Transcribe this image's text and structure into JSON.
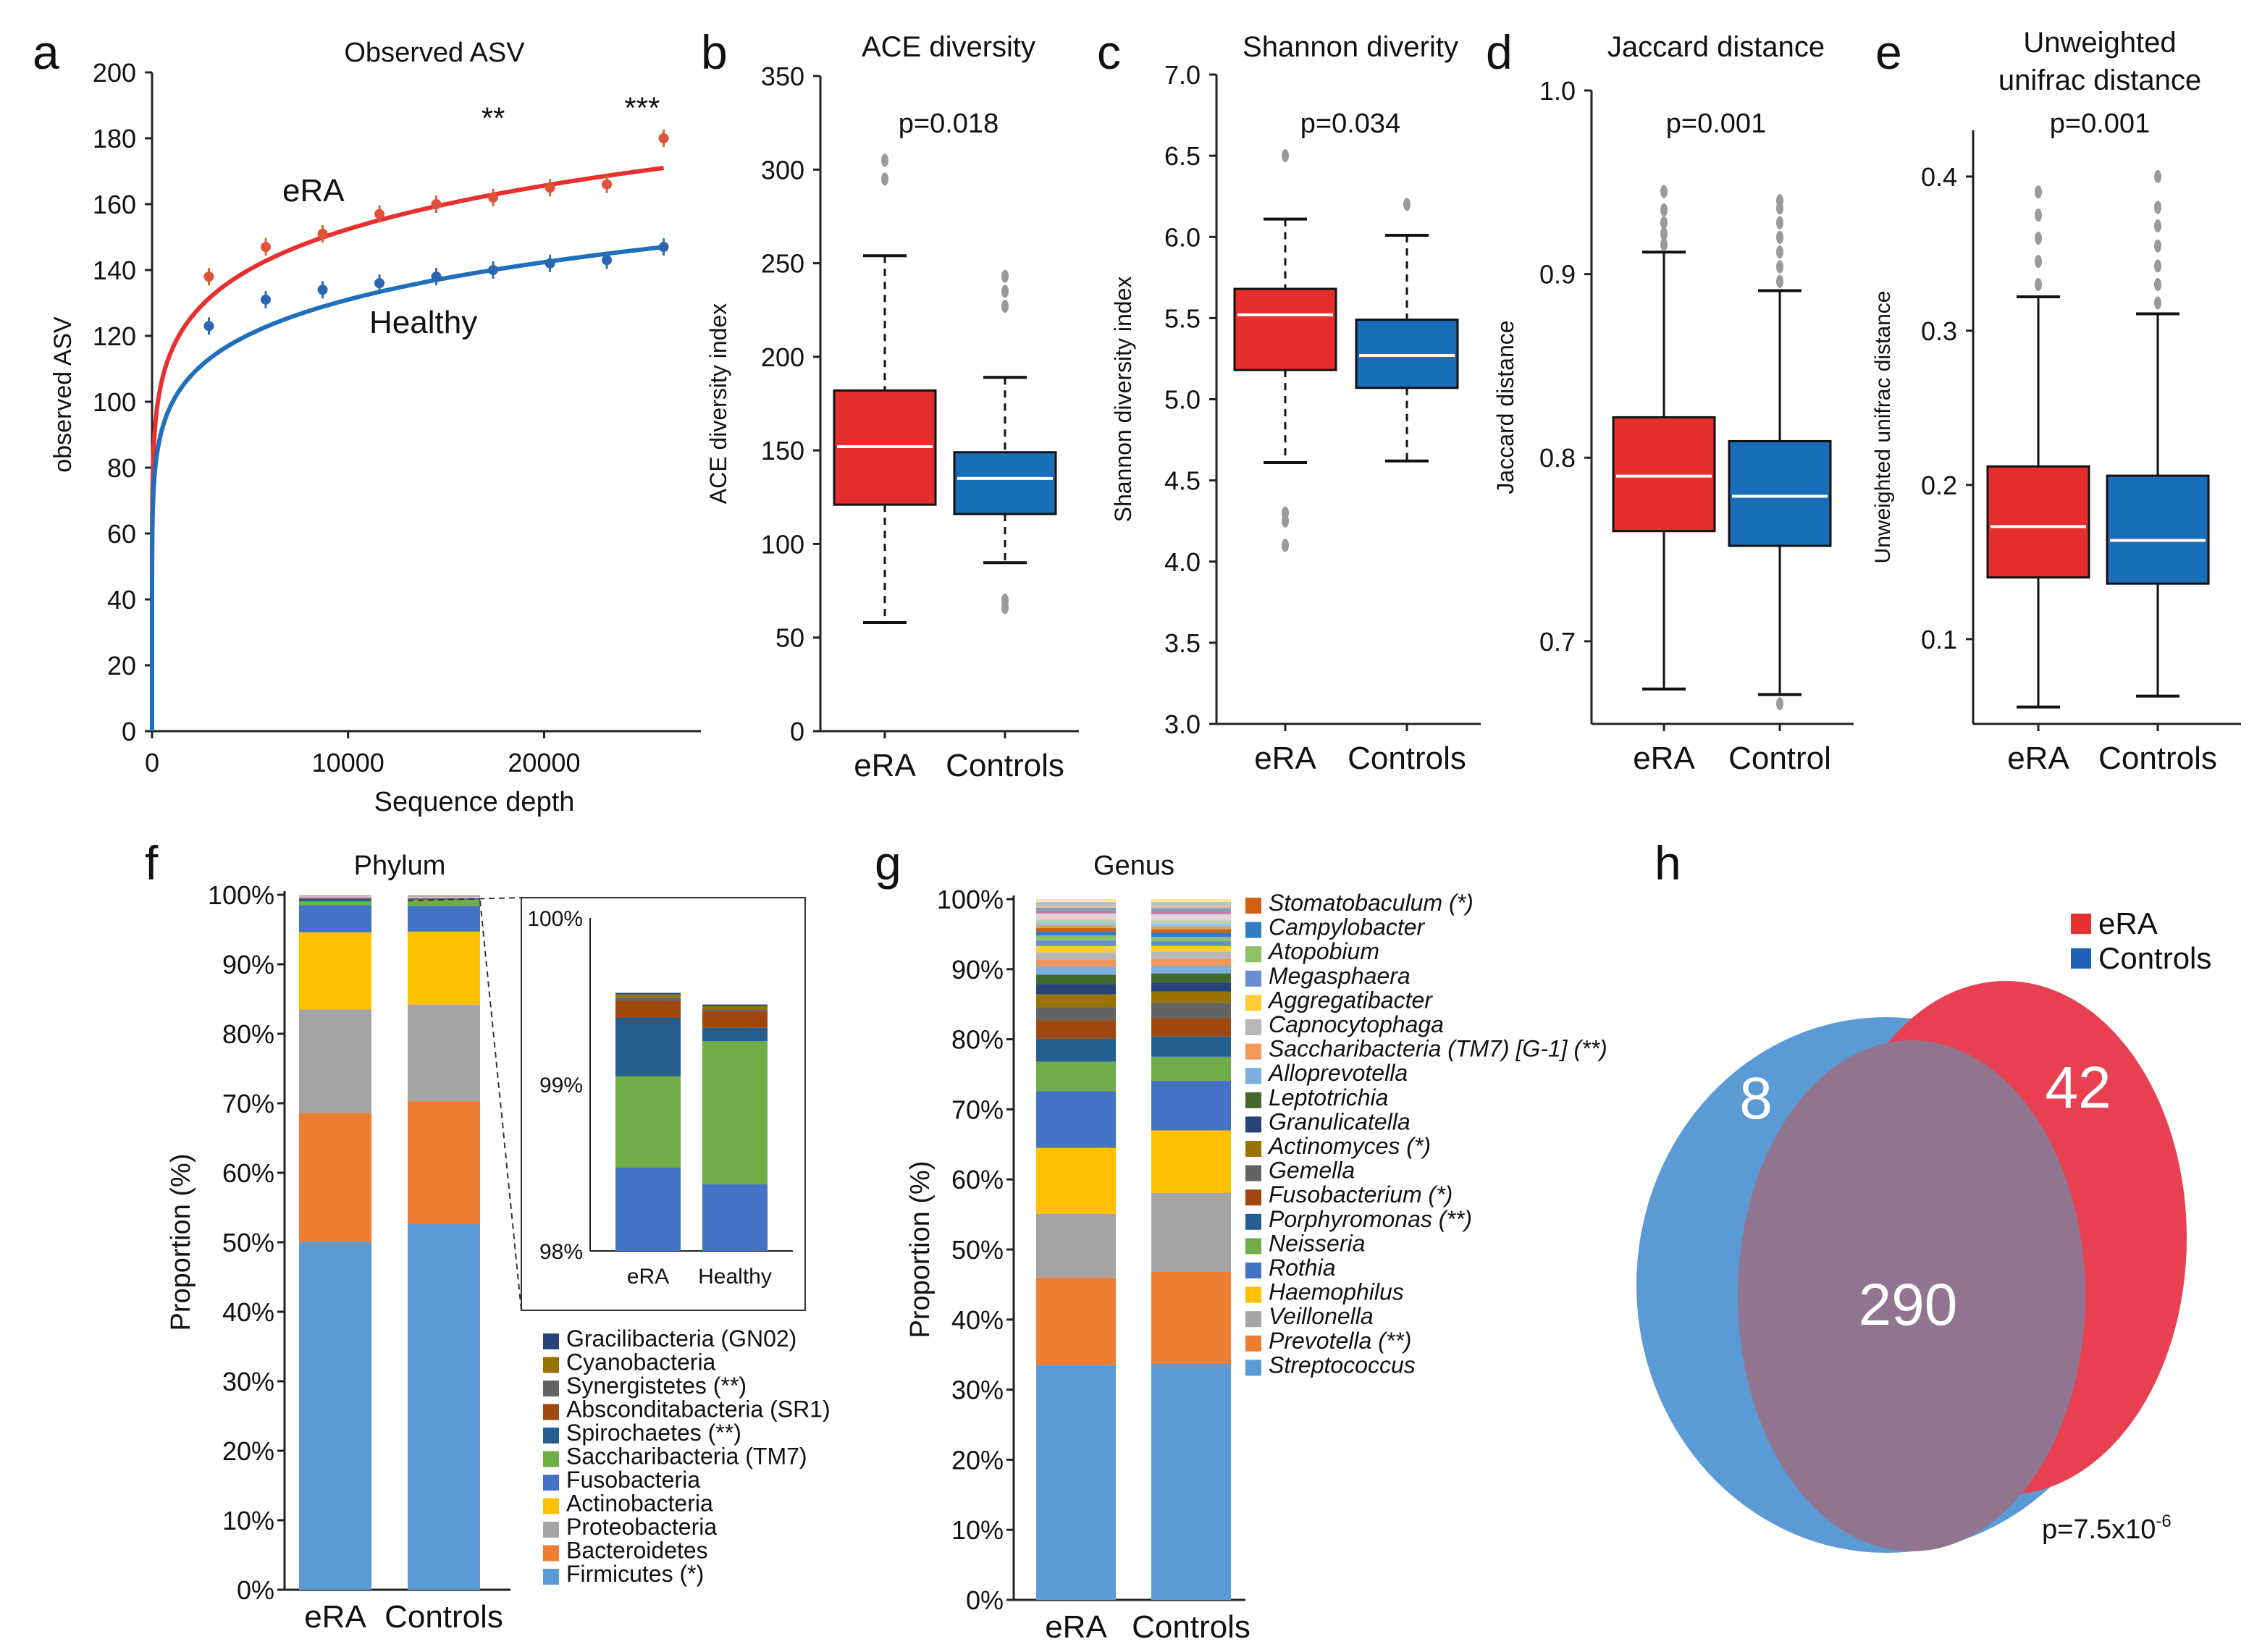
{
  "colors": {
    "era": "#e8302f",
    "healthy": "#1f6fbb",
    "box_era": "#e62e2d",
    "box_ctrl": "#1a6db8",
    "venn_blue": "#5b9bd5",
    "venn_red": "#e84050",
    "venn_overlap": "#917590"
  },
  "chart_data": [
    {
      "panel": "a",
      "type": "line",
      "title": "Observed ASV",
      "xlabel": "Sequence depth",
      "ylabel": "observed ASV",
      "xlim": [
        0,
        28000
      ],
      "ylim": [
        0,
        200
      ],
      "x_ticks": [
        "0",
        "10000",
        "20000"
      ],
      "x_tick_values": [
        0,
        10000,
        20000
      ],
      "y_ticks": [
        "0",
        "20",
        "40",
        "60",
        "80",
        "100",
        "120",
        "140",
        "160",
        "180",
        "200"
      ],
      "series": [
        {
          "name": "eRA",
          "fit_end": 171,
          "x": [
            2900,
            5800,
            8700,
            11600,
            14500,
            17400,
            20300,
            23200,
            26100
          ],
          "values": [
            138,
            147,
            151,
            157,
            160,
            162,
            165,
            166,
            180
          ]
        },
        {
          "name": "Healthy",
          "fit_end": 147,
          "x": [
            2900,
            5800,
            8700,
            11600,
            14500,
            17400,
            20300,
            23200,
            26100
          ],
          "values": [
            123,
            131,
            134,
            136,
            138,
            140,
            142,
            143,
            147
          ]
        }
      ],
      "annotations": [
        {
          "text": "**",
          "x": 17400,
          "y": 183
        },
        {
          "text": "***",
          "x": 25000,
          "y": 186
        }
      ],
      "label_era": "eRA",
      "label_healthy": "Healthy"
    },
    {
      "panel": "b",
      "type": "box",
      "title": "ACE diversity",
      "ylabel": "ACE diversity index",
      "pvalue": "p=0.018",
      "ylim": [
        0,
        350
      ],
      "y_ticks": [
        "0",
        "50",
        "100",
        "150",
        "200",
        "250",
        "300",
        "350"
      ],
      "categories": [
        "eRA",
        "Controls"
      ],
      "boxes": [
        {
          "q1": 121,
          "median": 152,
          "q3": 182,
          "whisker_low": 58,
          "whisker_high": 254,
          "outliers": [
            295,
            305
          ]
        },
        {
          "q1": 116,
          "median": 135,
          "q3": 149,
          "whisker_low": 90,
          "whisker_high": 189,
          "outliers": [
            66,
            70,
            227,
            235,
            243
          ]
        }
      ]
    },
    {
      "panel": "c",
      "type": "box",
      "title": "Shannon diverity",
      "ylabel": "Shannon diversity index",
      "pvalue": "p=0.034",
      "ylim": [
        3.0,
        7.0
      ],
      "y_ticks": [
        "3.0",
        "3.5",
        "4.0",
        "4.5",
        "5.0",
        "5.5",
        "6.0",
        "6.5",
        "7.0"
      ],
      "categories": [
        "eRA",
        "Controls"
      ],
      "boxes": [
        {
          "q1": 5.18,
          "median": 5.52,
          "q3": 5.68,
          "whisker_low": 4.61,
          "whisker_high": 6.11,
          "outliers": [
            4.1,
            4.25,
            4.3,
            6.5
          ]
        },
        {
          "q1": 5.07,
          "median": 5.27,
          "q3": 5.49,
          "whisker_low": 4.62,
          "whisker_high": 6.01,
          "outliers": [
            6.2
          ]
        }
      ]
    },
    {
      "panel": "d",
      "type": "box",
      "title": "Jaccard distance",
      "ylabel": "Jaccard distance",
      "pvalue": "p=0.001",
      "ylim": [
        0.655,
        1.0
      ],
      "y_ticks": [
        "0.7",
        "0.8",
        "0.9",
        "1.0"
      ],
      "y_tick_values": [
        0.7,
        0.8,
        0.9,
        1.0
      ],
      "categories": [
        "eRA",
        "Control"
      ],
      "boxes": [
        {
          "q1": 0.76,
          "median": 0.79,
          "q3": 0.822,
          "whisker_low": 0.674,
          "whisker_high": 0.912,
          "outliers": [
            0.916,
            0.922,
            0.928,
            0.935,
            0.945
          ]
        },
        {
          "q1": 0.752,
          "median": 0.779,
          "q3": 0.809,
          "whisker_low": 0.671,
          "whisker_high": 0.891,
          "outliers": [
            0.666,
            0.896,
            0.904,
            0.912,
            0.92,
            0.928,
            0.936,
            0.94
          ]
        }
      ]
    },
    {
      "panel": "e",
      "type": "box",
      "title": "Unweighted unifrac distance",
      "title_lines": [
        "Unweighted",
        "unifrac distance"
      ],
      "ylabel": "Unweighted unifrac distance",
      "pvalue": "p=0.001",
      "ylim": [
        0.045,
        0.43
      ],
      "y_ticks": [
        "0.1",
        "0.2",
        "0.3",
        "0.4"
      ],
      "y_tick_values": [
        0.1,
        0.2,
        0.3,
        0.4
      ],
      "categories": [
        "eRA",
        "Controls"
      ],
      "boxes": [
        {
          "q1": 0.14,
          "median": 0.173,
          "q3": 0.212,
          "whisker_low": 0.056,
          "whisker_high": 0.322,
          "outliers": [
            0.33,
            0.345,
            0.36,
            0.375,
            0.39
          ]
        },
        {
          "q1": 0.136,
          "median": 0.164,
          "q3": 0.206,
          "whisker_low": 0.063,
          "whisker_high": 0.311,
          "outliers": [
            0.318,
            0.33,
            0.342,
            0.355,
            0.368,
            0.38,
            0.4
          ]
        }
      ]
    },
    {
      "panel": "f",
      "type": "stacked-bar",
      "title": "Phylum",
      "ylabel": "Proportion (%)",
      "y_ticks": [
        "0%",
        "10%",
        "20%",
        "30%",
        "40%",
        "50%",
        "60%",
        "70%",
        "80%",
        "90%",
        "100%"
      ],
      "categories": [
        "eRA",
        "Controls"
      ],
      "series": [
        {
          "name": "Firmicutes (*)",
          "color": "#5b9bd5",
          "values": [
            50.0,
            52.6
          ]
        },
        {
          "name": "Bacteroidetes",
          "color": "#ed7d31",
          "values": [
            18.6,
            17.7
          ]
        },
        {
          "name": "Proteobacteria",
          "color": "#a5a5a5",
          "values": [
            14.9,
            13.9
          ]
        },
        {
          "name": "Actinobacteria",
          "color": "#ffc000",
          "values": [
            11.1,
            10.5
          ]
        },
        {
          "name": "Fusobacteria",
          "color": "#4472c4",
          "values": [
            3.9,
            3.7
          ]
        },
        {
          "name": "Saccharibacteria (TM7)",
          "color": "#70ad47",
          "values": [
            0.55,
            0.86
          ]
        },
        {
          "name": "Spirochaetes (**)",
          "color": "#255e91",
          "values": [
            0.35,
            0.08
          ]
        },
        {
          "name": "Absconditabacteria (SR1)",
          "color": "#9e480e",
          "values": [
            0.1,
            0.1
          ]
        },
        {
          "name": "Synergistetes (**)",
          "color": "#636363",
          "values": [
            0.02,
            0.01
          ]
        },
        {
          "name": "Cyanobacteria",
          "color": "#997300",
          "values": [
            0.02,
            0.02
          ]
        },
        {
          "name": "Gracilibacteria (GN02)",
          "color": "#264478",
          "values": [
            0.01,
            0.01
          ]
        }
      ],
      "inset": {
        "ylim": [
          98,
          100
        ],
        "y_ticks": [
          "98%",
          "99%",
          "100%"
        ],
        "categories": [
          "eRA",
          "Healthy"
        ]
      }
    },
    {
      "panel": "g",
      "type": "stacked-bar",
      "title": "Genus",
      "ylabel": "Proportion (%)",
      "y_ticks": [
        "0%",
        "10%",
        "20%",
        "30%",
        "40%",
        "50%",
        "60%",
        "70%",
        "80%",
        "90%",
        "100%"
      ],
      "categories": [
        "eRA",
        "Controls"
      ],
      "series": [
        {
          "name": "Streptococcus",
          "color": "#5b9bd5",
          "values": [
            33.5,
            33.8
          ]
        },
        {
          "name": "Prevotella (**)",
          "color": "#ed7d31",
          "values": [
            12.5,
            13.0
          ]
        },
        {
          "name": "Veillonella",
          "color": "#a5a5a5",
          "values": [
            9.1,
            11.3
          ]
        },
        {
          "name": "Haemophilus",
          "color": "#ffc000",
          "values": [
            9.4,
            8.9
          ]
        },
        {
          "name": "Rothia",
          "color": "#4472c4",
          "values": [
            8.1,
            7.1
          ]
        },
        {
          "name": "Neisseria",
          "color": "#70ad47",
          "values": [
            4.2,
            3.4
          ]
        },
        {
          "name": "Porphyromonas (**)",
          "color": "#255e91",
          "values": [
            3.3,
            2.9
          ]
        },
        {
          "name": "Fusobacterium (*)",
          "color": "#9e480e",
          "values": [
            2.6,
            2.6
          ]
        },
        {
          "name": "Gemella",
          "color": "#636363",
          "values": [
            1.9,
            2.2
          ]
        },
        {
          "name": "Actinomyces (*)",
          "color": "#997300",
          "values": [
            1.8,
            1.6
          ]
        },
        {
          "name": "Granulicatella",
          "color": "#264478",
          "values": [
            1.5,
            1.3
          ]
        },
        {
          "name": "Leptotrichia",
          "color": "#43682b",
          "values": [
            1.3,
            1.3
          ]
        },
        {
          "name": "Alloprevotella",
          "color": "#7cafdd",
          "values": [
            1.2,
            1.1
          ]
        },
        {
          "name": "Saccharibacteria (TM7) [G-1] (**)",
          "color": "#f1975a",
          "values": [
            1.0,
            1.0
          ]
        },
        {
          "name": "Capnocytophaga",
          "color": "#b7b7b7",
          "values": [
            1.0,
            1.0
          ]
        },
        {
          "name": "Aggregatibacter",
          "color": "#ffcd33",
          "values": [
            0.9,
            0.8
          ]
        },
        {
          "name": "Megasphaera",
          "color": "#698ed0",
          "values": [
            0.8,
            0.7
          ]
        },
        {
          "name": "Atopobium",
          "color": "#8cc168",
          "values": [
            0.7,
            0.6
          ]
        },
        {
          "name": "Campylobacter",
          "color": "#327dc2",
          "values": [
            0.6,
            0.6
          ]
        },
        {
          "name": "Stomatobaculum (*)",
          "color": "#d26012",
          "values": [
            0.5,
            0.5
          ]
        }
      ]
    },
    {
      "panel": "h",
      "type": "venn",
      "legend": [
        "eRA",
        "Controls"
      ],
      "counts": {
        "controls_only": "8",
        "era_only": "42",
        "shared": "290"
      },
      "pvalue_prefix": "p=7.5x10",
      "pvalue_exp": "-6"
    }
  ],
  "panel_letters": [
    "a",
    "b",
    "c",
    "d",
    "e",
    "f",
    "g",
    "h"
  ]
}
